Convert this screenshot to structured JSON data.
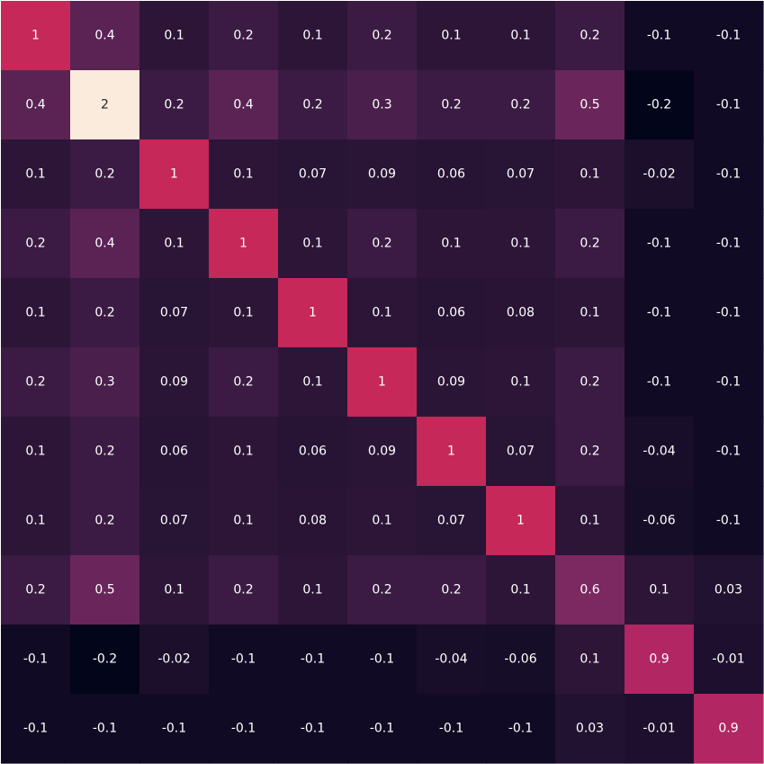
{
  "chart_data": {
    "type": "heatmap",
    "title": "",
    "xlabel": "",
    "ylabel": "",
    "colormap": "rocket",
    "color_range": [
      -0.2,
      2
    ],
    "grid": false,
    "legend": "none",
    "matrix": [
      [
        "1",
        "0.4",
        "0.1",
        "0.2",
        "0.1",
        "0.2",
        "0.1",
        "0.1",
        "0.2",
        "-0.1",
        "-0.1"
      ],
      [
        "0.4",
        "2",
        "0.2",
        "0.4",
        "0.2",
        "0.3",
        "0.2",
        "0.2",
        "0.5",
        "-0.2",
        "-0.1"
      ],
      [
        "0.1",
        "0.2",
        "1",
        "0.1",
        "0.07",
        "0.09",
        "0.06",
        "0.07",
        "0.1",
        "-0.02",
        "-0.1"
      ],
      [
        "0.2",
        "0.4",
        "0.1",
        "1",
        "0.1",
        "0.2",
        "0.1",
        "0.1",
        "0.2",
        "-0.1",
        "-0.1"
      ],
      [
        "0.1",
        "0.2",
        "0.07",
        "0.1",
        "1",
        "0.1",
        "0.06",
        "0.08",
        "0.1",
        "-0.1",
        "-0.1"
      ],
      [
        "0.2",
        "0.3",
        "0.09",
        "0.2",
        "0.1",
        "1",
        "0.09",
        "0.1",
        "0.2",
        "-0.1",
        "-0.1"
      ],
      [
        "0.1",
        "0.2",
        "0.06",
        "0.1",
        "0.06",
        "0.09",
        "1",
        "0.07",
        "0.2",
        "-0.04",
        "-0.1"
      ],
      [
        "0.1",
        "0.2",
        "0.07",
        "0.1",
        "0.08",
        "0.1",
        "0.07",
        "1",
        "0.1",
        "-0.06",
        "-0.1"
      ],
      [
        "0.2",
        "0.5",
        "0.1",
        "0.2",
        "0.1",
        "0.2",
        "0.2",
        "0.1",
        "0.6",
        "0.1",
        "0.03"
      ],
      [
        "-0.1",
        "-0.2",
        "-0.02",
        "-0.1",
        "-0.1",
        "-0.1",
        "-0.04",
        "-0.06",
        "0.1",
        "0.9",
        "-0.01"
      ],
      [
        "-0.1",
        "-0.1",
        "-0.1",
        "-0.1",
        "-0.1",
        "-0.1",
        "-0.1",
        "-0.1",
        "0.03",
        "-0.01",
        "0.9"
      ]
    ]
  }
}
